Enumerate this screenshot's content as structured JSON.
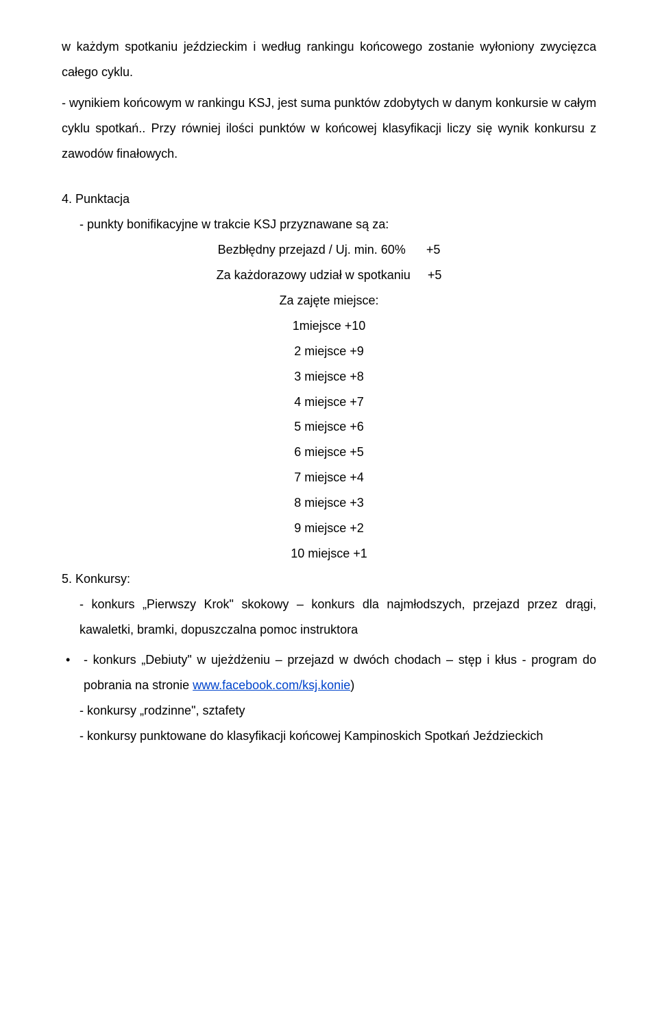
{
  "para1": "w każdym spotkaniu jeździeckim i według rankingu końcowego zostanie wyłoniony zwycięzca całego cyklu.",
  "para2": "- wynikiem końcowym w rankingu KSJ, jest suma punktów zdobytych w danym konkursie w całym cyklu spotkań.. Przy równiej ilości punktów w końcowej klasyfikacji liczy się wynik konkursu z zawodów finałowych.",
  "section4_title": "4. Punktacja",
  "section4_sub": "- punkty bonifikacyjne w trakcie KSJ przyznawane są za:",
  "bonus": {
    "row1_label": "Bezbłędny przejazd / Uj. min. 60%",
    "row1_val": "+5",
    "row2_label": "Za każdorazowy udział w spotkaniu",
    "row2_val": "+5"
  },
  "places_title": "Za zajęte miejsce:",
  "places": [
    "1miejsce +10",
    "2 miejsce +9",
    "3 miejsce +8",
    "4 miejsce +7",
    "5 miejsce +6",
    "6 miejsce +5",
    "7 miejsce +4",
    "8 miejsce +3",
    "9 miejsce +2",
    "10 miejsce +1"
  ],
  "section5_title": "5. Konkursy:",
  "konk1": "- konkurs „Pierwszy Krok\" skokowy – konkurs dla najmłodszych, przejazd przez drągi,   kawaletki, bramki, dopuszczalna pomoc instruktora",
  "konk2_pre": "- konkurs „Debiuty\" w ujeżdżeniu – przejazd w dwóch chodach – stęp i kłus - program do pobrania na stronie ",
  "konk2_link": "www.facebook.com/ksj.konie",
  "konk2_post": ")",
  "konk3": "-   konkursy „rodzinne\", sztafety",
  "konk4": "- konkursy punktowane do klasyfikacji końcowej Kampinoskich Spotkań Jeździeckich"
}
